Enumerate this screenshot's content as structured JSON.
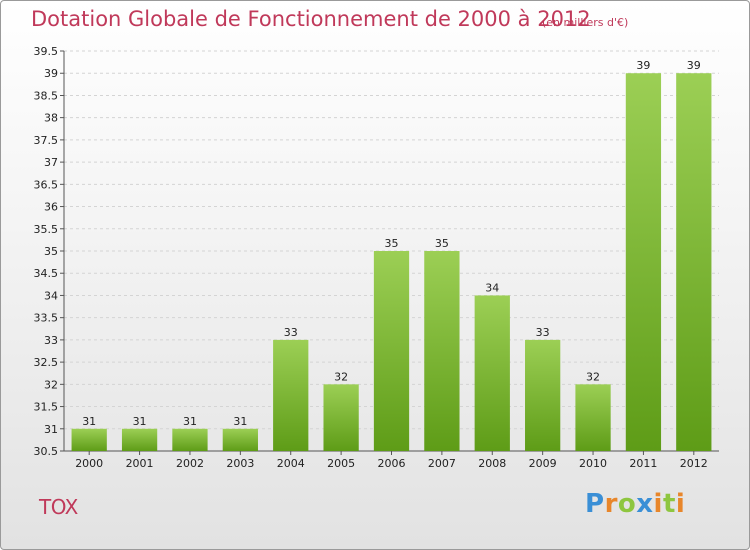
{
  "title": "Dotation Globale de Fonctionnement de 2000 à 2012",
  "subtitle": "(en milliers d'€)",
  "city": "TOX",
  "logo": {
    "text": "Proxiti",
    "colors": [
      "#3a8fd6",
      "#e8862a",
      "#8ec63f",
      "#3a8fd6",
      "#e8862a",
      "#8ec63f",
      "#e8862a"
    ]
  },
  "chart_data": {
    "type": "bar",
    "categories": [
      "2000",
      "2001",
      "2002",
      "2003",
      "2004",
      "2005",
      "2006",
      "2007",
      "2008",
      "2009",
      "2010",
      "2011",
      "2012"
    ],
    "values": [
      31,
      31,
      31,
      31,
      33,
      32,
      35,
      35,
      34,
      33,
      32,
      39,
      39
    ],
    "value_labels": [
      "31",
      "31",
      "31",
      "31",
      "33",
      "32",
      "35",
      "35",
      "34",
      "33",
      "32",
      "39",
      "39"
    ],
    "title": "Dotation Globale de Fonctionnement de 2000 à 2012",
    "ylim": [
      30.5,
      39.5
    ],
    "yticks": [
      "30.5",
      "31",
      "31.5",
      "32",
      "32.5",
      "33",
      "33.5",
      "34",
      "34.5",
      "35",
      "35.5",
      "36",
      "36.5",
      "37",
      "37.5",
      "38",
      "38.5",
      "39",
      "39.5"
    ],
    "grid": true,
    "bar_color": "#7fbe2c"
  }
}
